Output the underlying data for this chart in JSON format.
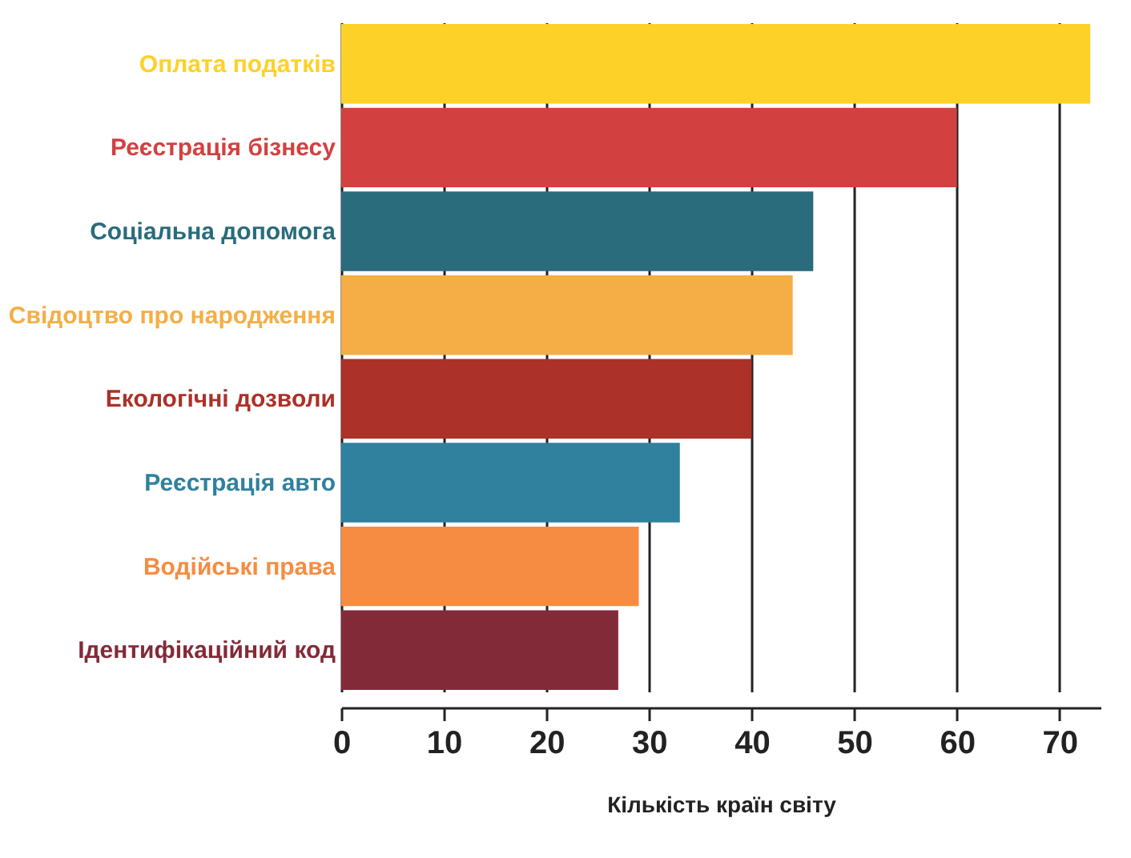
{
  "chart_data": {
    "type": "bar",
    "orientation": "horizontal",
    "xlabel": "Кількість країн світу",
    "categories": [
      "Оплата податків",
      "Реєстрація бізнесу",
      "Соціальна допомога",
      "Свідоцтво про народження",
      "Екологічні дозволи",
      "Реєстрація авто",
      "Водійські права",
      "Ідентифікаційний код"
    ],
    "values": [
      73,
      60,
      46,
      44,
      40,
      33,
      29,
      27
    ],
    "colors": [
      "#fdd128",
      "#d34040",
      "#2a6b7c",
      "#f4ae45",
      "#ac3128",
      "#2f819e",
      "#f68c42",
      "#832a38"
    ],
    "xlim": [
      0,
      74
    ],
    "xticks": [
      0,
      10,
      20,
      30,
      40,
      50,
      60,
      70
    ],
    "grid": "x"
  }
}
